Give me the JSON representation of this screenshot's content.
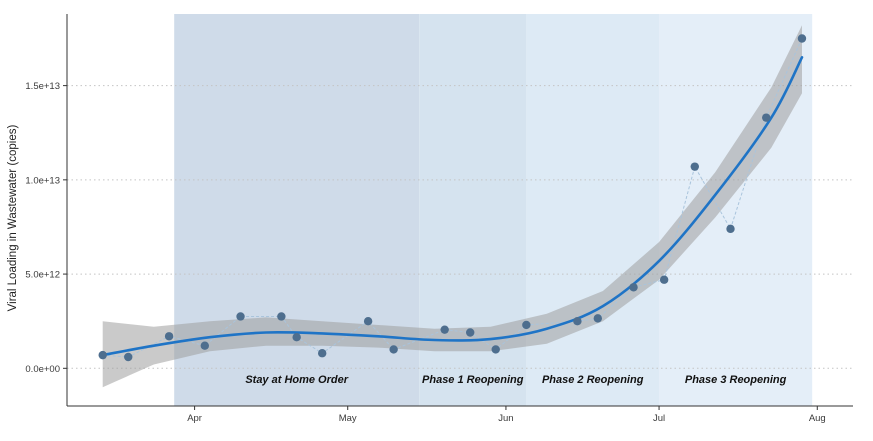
{
  "chart_data": {
    "type": "scatter",
    "title": "",
    "xlabel": "",
    "ylabel": "Viral Loading in Wastewater (copies)",
    "xlim": [
      "2020-03-07",
      "2020-08-08"
    ],
    "ylim": [
      -2000000000000.0,
      18800000000000.0
    ],
    "grid": "horizontal dotted",
    "x_ticks": [
      {
        "date": "2020-04-01",
        "label": "Apr"
      },
      {
        "date": "2020-05-01",
        "label": "May"
      },
      {
        "date": "2020-06-01",
        "label": "Jun"
      },
      {
        "date": "2020-07-01",
        "label": "Jul"
      },
      {
        "date": "2020-08-01",
        "label": "Aug"
      }
    ],
    "y_ticks": [
      {
        "value": 0,
        "label": "0.0e+00"
      },
      {
        "value": 5000000000000,
        "label": "5.0e+12"
      },
      {
        "value": 10000000000000,
        "label": "1.0e+13"
      },
      {
        "value": 15000000000000,
        "label": "1.5e+13"
      }
    ],
    "phases": [
      {
        "label": "Stay at Home Order",
        "start": "2020-03-28",
        "end": "2020-05-15",
        "color": "#cfdbe9"
      },
      {
        "label": "Phase 1 Reopening",
        "start": "2020-05-15",
        "end": "2020-06-05",
        "color": "#d5e3ef"
      },
      {
        "label": "Phase 2 Reopening",
        "start": "2020-06-05",
        "end": "2020-07-01",
        "color": "#ddeaf5"
      },
      {
        "label": "Phase 3 Reopening",
        "start": "2020-07-01",
        "end": "2020-07-31",
        "color": "#e4eef8"
      }
    ],
    "observations": {
      "color": "#4e6e8e",
      "points": [
        {
          "x": "2020-03-14",
          "y": 700000000000
        },
        {
          "x": "2020-03-19",
          "y": 600000000000
        },
        {
          "x": "2020-03-27",
          "y": 1700000000000
        },
        {
          "x": "2020-04-03",
          "y": 1200000000000
        },
        {
          "x": "2020-04-10",
          "y": 2750000000000
        },
        {
          "x": "2020-04-18",
          "y": 2750000000000
        },
        {
          "x": "2020-04-21",
          "y": 1650000000000
        },
        {
          "x": "2020-04-26",
          "y": 800000000000
        },
        {
          "x": "2020-05-05",
          "y": 2500000000000
        },
        {
          "x": "2020-05-10",
          "y": 1000000000000
        },
        {
          "x": "2020-05-20",
          "y": 2050000000000
        },
        {
          "x": "2020-05-25",
          "y": 1900000000000
        },
        {
          "x": "2020-05-30",
          "y": 1000000000000
        },
        {
          "x": "2020-06-05",
          "y": 2300000000000
        },
        {
          "x": "2020-06-15",
          "y": 2500000000000
        },
        {
          "x": "2020-06-19",
          "y": 2650000000000
        },
        {
          "x": "2020-06-26",
          "y": 4300000000000
        },
        {
          "x": "2020-07-02",
          "y": 4700000000000
        },
        {
          "x": "2020-07-08",
          "y": 10700000000000
        },
        {
          "x": "2020-07-15",
          "y": 7400000000000
        },
        {
          "x": "2020-07-22",
          "y": 13300000000000
        },
        {
          "x": "2020-07-29",
          "y": 17500000000000
        }
      ]
    },
    "trend": {
      "color": "#1f74c6",
      "band_color": "#9e9e9e",
      "points": [
        {
          "x": "2020-03-14",
          "y": 700000000000,
          "lo": -1000000000000,
          "hi": 2500000000000
        },
        {
          "x": "2020-03-24",
          "y": 1200000000000,
          "lo": 200000000000,
          "hi": 2200000000000
        },
        {
          "x": "2020-04-04",
          "y": 1650000000000,
          "lo": 900000000000,
          "hi": 2500000000000
        },
        {
          "x": "2020-04-15",
          "y": 1900000000000,
          "lo": 1200000000000,
          "hi": 2700000000000
        },
        {
          "x": "2020-04-26",
          "y": 1850000000000,
          "lo": 1200000000000,
          "hi": 2500000000000
        },
        {
          "x": "2020-05-07",
          "y": 1700000000000,
          "lo": 1100000000000,
          "hi": 2300000000000
        },
        {
          "x": "2020-05-18",
          "y": 1500000000000,
          "lo": 900000000000,
          "hi": 2100000000000
        },
        {
          "x": "2020-05-29",
          "y": 1550000000000,
          "lo": 900000000000,
          "hi": 2200000000000
        },
        {
          "x": "2020-06-09",
          "y": 2100000000000,
          "lo": 1300000000000,
          "hi": 2900000000000
        },
        {
          "x": "2020-06-20",
          "y": 3300000000000,
          "lo": 2500000000000,
          "hi": 4100000000000
        },
        {
          "x": "2020-07-01",
          "y": 5700000000000,
          "lo": 4700000000000,
          "hi": 6700000000000
        },
        {
          "x": "2020-07-12",
          "y": 9200000000000,
          "lo": 8000000000000,
          "hi": 10400000000000
        },
        {
          "x": "2020-07-23",
          "y": 13300000000000,
          "lo": 11700000000000,
          "hi": 14900000000000
        },
        {
          "x": "2020-07-29",
          "y": 16500000000000,
          "lo": 14600000000000,
          "hi": 18200000000000
        }
      ]
    }
  }
}
